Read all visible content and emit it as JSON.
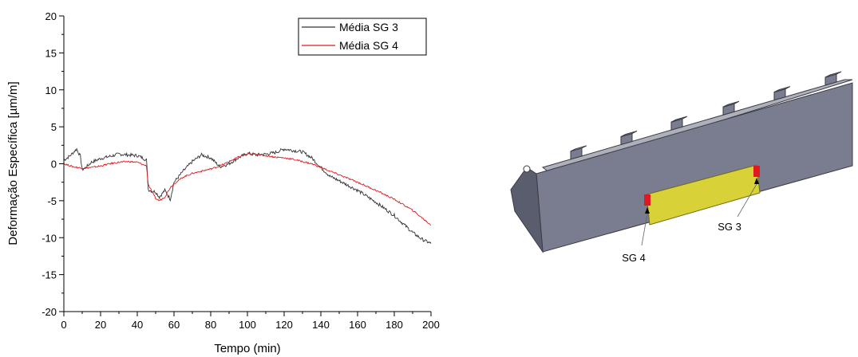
{
  "chart_data": {
    "type": "line",
    "title": "",
    "xlabel": "Tempo (min)",
    "ylabel": "Deformação Específica [µm/m]",
    "xlim": [
      0,
      200
    ],
    "ylim": [
      -20,
      20
    ],
    "xticks": [
      0,
      20,
      40,
      60,
      80,
      100,
      120,
      140,
      160,
      180,
      200
    ],
    "yticks": [
      -20,
      -15,
      -10,
      -5,
      0,
      5,
      10,
      15,
      20
    ],
    "grid": false,
    "legend_position": "top-right",
    "series": [
      {
        "name": "Média SG 3",
        "color": "#333333",
        "x": [
          0,
          3,
          7,
          9,
          10,
          12,
          15,
          20,
          25,
          30,
          35,
          40,
          43,
          45,
          46,
          48,
          50,
          52,
          55,
          58,
          60,
          65,
          70,
          75,
          80,
          85,
          90,
          95,
          100,
          105,
          110,
          115,
          120,
          125,
          130,
          135,
          140,
          145,
          150,
          160,
          170,
          180,
          190,
          195,
          200
        ],
        "y": [
          0.5,
          1.0,
          2.0,
          1.0,
          -0.8,
          -0.5,
          0.2,
          0.7,
          1.0,
          1.3,
          1.2,
          1.1,
          0.8,
          0.5,
          -3.5,
          -3.7,
          -3.8,
          -4.5,
          -3.6,
          -4.8,
          -2.5,
          -1.0,
          0.3,
          1.2,
          0.8,
          -0.4,
          0.0,
          0.8,
          1.4,
          1.2,
          1.3,
          1.5,
          2.0,
          1.8,
          1.6,
          0.8,
          -0.5,
          -1.7,
          -2.3,
          -3.6,
          -5.2,
          -7.0,
          -9.3,
          -10.2,
          -10.8
        ]
      },
      {
        "name": "Média SG 4",
        "color": "#e0191e",
        "x": [
          0,
          5,
          10,
          15,
          20,
          25,
          30,
          35,
          40,
          43,
          45,
          46,
          48,
          50,
          52,
          55,
          58,
          60,
          65,
          70,
          75,
          80,
          85,
          90,
          95,
          100,
          105,
          110,
          115,
          120,
          125,
          130,
          135,
          140,
          150,
          160,
          170,
          180,
          190,
          200
        ],
        "y": [
          0.0,
          -0.4,
          -0.6,
          -0.5,
          -0.3,
          0.0,
          0.2,
          0.3,
          0.2,
          -0.1,
          -0.3,
          -2.8,
          -3.8,
          -4.7,
          -5.0,
          -4.5,
          -3.2,
          -2.7,
          -1.8,
          -1.3,
          -1.0,
          -0.7,
          -0.3,
          0.3,
          0.9,
          1.3,
          1.3,
          1.1,
          0.9,
          0.8,
          0.6,
          0.3,
          0.0,
          -0.5,
          -1.5,
          -2.5,
          -3.6,
          -4.8,
          -6.3,
          -8.3
        ]
      }
    ]
  },
  "figure": {
    "sg4_label": "SG 4",
    "sg3_label": "SG 3",
    "beam_color": "#7a7d8f",
    "beam_top_color": "#aeb0ba",
    "beam_end_color": "#5a5d6e",
    "plate_color": "#d8d238",
    "gauge_color": "#e0191e"
  }
}
